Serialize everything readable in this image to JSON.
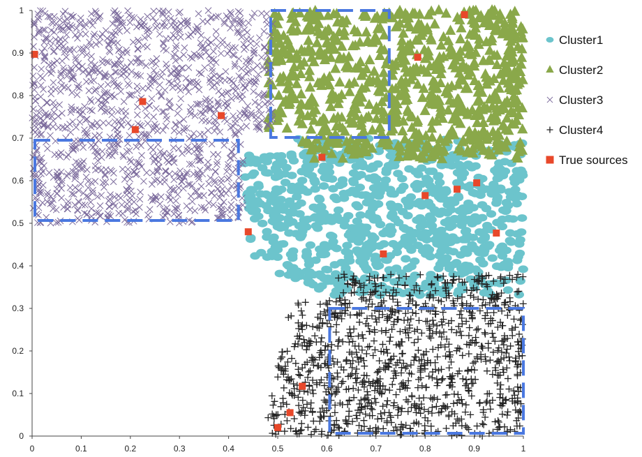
{
  "chart_data": {
    "type": "scatter",
    "xlim": [
      0,
      1
    ],
    "ylim": [
      0,
      1
    ],
    "x_ticks": [
      "0",
      "0.1",
      "0.2",
      "0.3",
      "0.4",
      "0.5",
      "0.6",
      "0.7",
      "0.8",
      "0.9",
      "1"
    ],
    "y_ticks": [
      "0",
      "0.1",
      "0.2",
      "0.3",
      "0.4",
      "0.5",
      "0.6",
      "0.7",
      "0.8",
      "0.9",
      "1"
    ],
    "legend_position": "right",
    "grid": false,
    "series": [
      {
        "name": "Cluster1",
        "marker": "circle",
        "color": "#6cc4cc",
        "point_count": 900,
        "region": {
          "x_min": 0.43,
          "x_max": 1.0,
          "y_min": 0.33,
          "y_max": 0.7
        }
      },
      {
        "name": "Cluster2",
        "marker": "triangle",
        "color": "#8aa84a",
        "point_count": 800,
        "region": {
          "x_min": 0.48,
          "x_max": 1.0,
          "y_min": 0.65,
          "y_max": 1.0
        }
      },
      {
        "name": "Cluster3",
        "marker": "x",
        "color": "#7b6a9c",
        "point_count": 1300,
        "region": {
          "x_min": 0.0,
          "x_max": 0.49,
          "y_min": 0.5,
          "y_max": 1.0
        }
      },
      {
        "name": "Cluster4",
        "marker": "plus",
        "color": "#222222",
        "point_count": 1100,
        "region": {
          "x_min": 0.48,
          "x_max": 1.0,
          "y_min": 0.0,
          "y_max": 0.38
        }
      },
      {
        "name": "True sources",
        "marker": "square",
        "color": "#e8482a",
        "points": [
          [
            0.005,
            0.897
          ],
          [
            0.225,
            0.786
          ],
          [
            0.21,
            0.72
          ],
          [
            0.385,
            0.753
          ],
          [
            0.88,
            0.99
          ],
          [
            0.785,
            0.89
          ],
          [
            0.59,
            0.655
          ],
          [
            0.44,
            0.48
          ],
          [
            0.715,
            0.428
          ],
          [
            0.8,
            0.565
          ],
          [
            0.865,
            0.58
          ],
          [
            0.905,
            0.595
          ],
          [
            0.945,
            0.477
          ],
          [
            0.55,
            0.117
          ],
          [
            0.525,
            0.055
          ],
          [
            0.5,
            0.02
          ]
        ]
      }
    ],
    "annotations": [
      {
        "type": "dashed-rect",
        "color": "#4a78e0",
        "x": [
          0.0,
          0.42
        ],
        "y": [
          0.5,
          0.695
        ]
      },
      {
        "type": "dashed-rect",
        "color": "#4a78e0",
        "x": [
          0.48,
          0.727
        ],
        "y": [
          0.695,
          1.0
        ]
      },
      {
        "type": "dashed-rect",
        "color": "#4a78e0",
        "x": [
          0.6,
          1.0
        ],
        "y": [
          0.0,
          0.3
        ]
      }
    ]
  }
}
